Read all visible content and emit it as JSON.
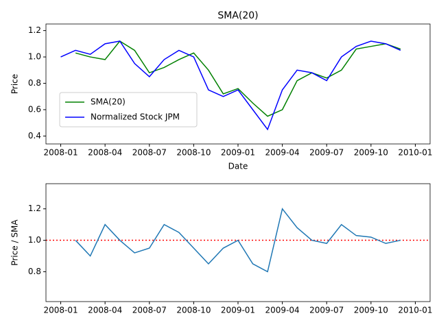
{
  "chart_data": [
    {
      "type": "line",
      "title": "SMA(20)",
      "x_label": "Date",
      "y_label": "Price",
      "x": [
        "2008-01",
        "2008-02",
        "2008-03",
        "2008-04",
        "2008-05",
        "2008-06",
        "2008-07",
        "2008-08",
        "2008-09",
        "2008-10",
        "2008-11",
        "2008-12",
        "2009-01",
        "2009-02",
        "2009-03",
        "2009-04",
        "2009-05",
        "2009-06",
        "2009-07",
        "2009-08",
        "2009-09",
        "2009-10",
        "2009-11",
        "2009-12"
      ],
      "series": [
        {
          "name": "SMA(20)",
          "color": "#008000",
          "values": [
            null,
            1.03,
            1.0,
            0.98,
            1.12,
            1.05,
            0.88,
            0.92,
            0.98,
            1.03,
            0.9,
            0.72,
            0.76,
            0.65,
            0.55,
            0.6,
            0.82,
            0.88,
            0.84,
            0.9,
            1.06,
            1.08,
            1.1,
            1.06
          ]
        },
        {
          "name": "Normalized Stock JPM",
          "color": "#0000ff",
          "values": [
            1.0,
            1.05,
            1.02,
            1.1,
            1.12,
            0.95,
            0.85,
            0.98,
            1.05,
            1.0,
            0.75,
            0.7,
            0.75,
            0.6,
            0.45,
            0.75,
            0.9,
            0.88,
            0.82,
            1.0,
            1.08,
            1.12,
            1.1,
            1.05
          ]
        }
      ],
      "xlim": [
        "2007-12",
        "2010-02"
      ],
      "xticks": [
        "2008-01",
        "2008-04",
        "2008-07",
        "2008-10",
        "2009-01",
        "2009-04",
        "2009-07",
        "2009-10",
        "2010-01"
      ],
      "ylim": [
        0.34,
        1.25
      ],
      "yticks": [
        0.4,
        0.6,
        0.8,
        {
          "value": 1.0,
          "label": "1.0"
        },
        1.2
      ],
      "legend": "lower left"
    },
    {
      "type": "line",
      "y_label": "Price / SMA",
      "x": [
        "2008-01",
        "2008-02",
        "2008-03",
        "2008-04",
        "2008-05",
        "2008-06",
        "2008-07",
        "2008-08",
        "2008-09",
        "2008-10",
        "2008-11",
        "2008-12",
        "2009-01",
        "2009-02",
        "2009-03",
        "2009-04",
        "2009-05",
        "2009-06",
        "2009-07",
        "2009-08",
        "2009-09",
        "2009-10",
        "2009-11",
        "2009-12"
      ],
      "series": [
        {
          "color": "#1f77b4",
          "values": [
            null,
            1.0,
            0.9,
            1.1,
            1.0,
            0.92,
            0.95,
            1.1,
            1.05,
            0.95,
            0.85,
            0.95,
            1.0,
            0.85,
            0.8,
            1.2,
            1.08,
            1.0,
            0.98,
            1.1,
            1.03,
            1.02,
            0.98,
            1.0
          ]
        }
      ],
      "hline": {
        "value": 1.0,
        "color": "#ff0000"
      },
      "xlim": [
        "2007-12",
        "2010-02"
      ],
      "xticks": [
        "2008-01",
        "2008-04",
        "2008-07",
        "2008-10",
        "2009-01",
        "2009-04",
        "2009-07",
        "2009-10",
        "2010-01"
      ],
      "ylim": [
        0.61,
        1.36
      ],
      "yticks": [
        0.8,
        {
          "value": 1.0,
          "label": "1.0"
        },
        1.2
      ]
    }
  ]
}
